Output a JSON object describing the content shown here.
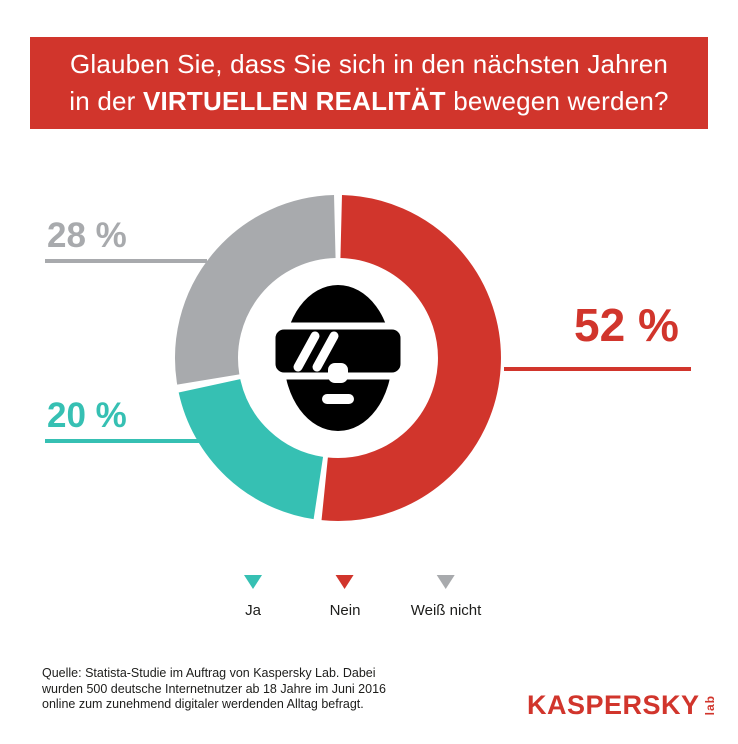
{
  "theme": {
    "banner": "#d1352c",
    "banner_text": "#ffffff",
    "background": "#ffffff",
    "text": "#1d1d1b",
    "brand_red": "#d1352c"
  },
  "header": {
    "line1": "Glauben Sie, dass Sie sich in den nächsten Jahren",
    "line2_prefix": "in der ",
    "line2_bold": "VIRTUELLEN REALITÄT",
    "line2_suffix": " bewegen werden?"
  },
  "chart_data": {
    "type": "pie",
    "subtype": "donut",
    "title": "Glauben Sie, dass Sie sich in den nächsten Jahren in der VIRTUELLEN REALITÄT bewegen werden?",
    "unit": "%",
    "start_angle": "top",
    "direction": "clockwise",
    "segments": [
      {
        "label": "Nein",
        "value": 52,
        "display": "52 %",
        "color": "#d1352c"
      },
      {
        "label": "Ja",
        "value": 20,
        "display": "20 %",
        "color": "#36c0b3"
      },
      {
        "label": "Weiß nicht",
        "value": 28,
        "display": "28 %",
        "color": "#a8aaad"
      }
    ],
    "legend": [
      "Ja",
      "Nein",
      "Weiß nicht"
    ],
    "legend_position": "bottom",
    "center_icon": "vr-headset-head-icon"
  },
  "source": {
    "line1": "Quelle: Statista-Studie im Auftrag von Kaspersky Lab. Dabei",
    "line2": "wurden 500 deutsche Internetnutzer ab 18 Jahre im Juni 2016",
    "line3": "online zum zunehmend digitaler werdenden Alltag befragt."
  },
  "logo": {
    "brand": "KASPERSKY",
    "sub": "lab"
  }
}
